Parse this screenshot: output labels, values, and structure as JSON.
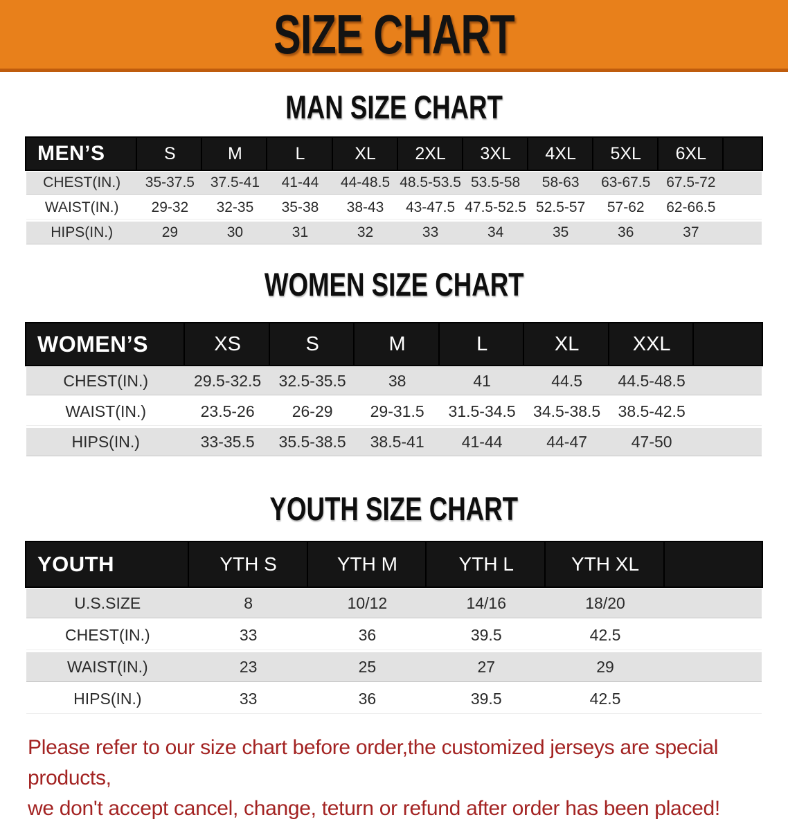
{
  "banner": {
    "title": "SIZE CHART"
  },
  "charts": [
    {
      "title": "MAN SIZE CHART",
      "header_label": "MEN’S",
      "columns": [
        "S",
        "M",
        "L",
        "XL",
        "2XL",
        "3XL",
        "4XL",
        "5XL",
        "6XL"
      ],
      "rows": [
        {
          "label": "CHEST(IN.)",
          "values": [
            "35-37.5",
            "37.5-41",
            "41-44",
            "44-48.5",
            "48.5-53.5",
            "53.5-58",
            "58-63",
            "63-67.5",
            "67.5-72"
          ]
        },
        {
          "label": "WAIST(IN.)",
          "values": [
            "29-32",
            "32-35",
            "35-38",
            "38-43",
            "43-47.5",
            "47.5-52.5",
            "52.5-57",
            "57-62",
            "62-66.5"
          ]
        },
        {
          "label": "HIPS(IN.)",
          "values": [
            "29",
            "30",
            "31",
            "32",
            "33",
            "34",
            "35",
            "36",
            "37"
          ]
        }
      ]
    },
    {
      "title": "WOMEN SIZE CHART",
      "header_label": "WOMEN’S",
      "columns": [
        "XS",
        "S",
        "M",
        "L",
        "XL",
        "XXL"
      ],
      "rows": [
        {
          "label": "CHEST(IN.)",
          "values": [
            "29.5-32.5",
            "32.5-35.5",
            "38",
            "41",
            "44.5",
            "44.5-48.5"
          ]
        },
        {
          "label": "WAIST(IN.)",
          "values": [
            "23.5-26",
            "26-29",
            "29-31.5",
            "31.5-34.5",
            "34.5-38.5",
            "38.5-42.5"
          ]
        },
        {
          "label": "HIPS(IN.)",
          "values": [
            "33-35.5",
            "35.5-38.5",
            "38.5-41",
            "41-44",
            "44-47",
            "47-50"
          ]
        }
      ]
    },
    {
      "title": "YOUTH SIZE CHART",
      "header_label": "YOUTH",
      "columns": [
        "YTH S",
        "YTH M",
        "YTH L",
        "YTH XL"
      ],
      "rows": [
        {
          "label": "U.S.SIZE",
          "values": [
            "8",
            "10/12",
            "14/16",
            "18/20"
          ]
        },
        {
          "label": "CHEST(IN.)",
          "values": [
            "33",
            "36",
            "39.5",
            "42.5"
          ]
        },
        {
          "label": "WAIST(IN.)",
          "values": [
            "23",
            "25",
            "27",
            "29"
          ]
        },
        {
          "label": "HIPS(IN.)",
          "values": [
            "33",
            "36",
            "39.5",
            "42.5"
          ]
        }
      ]
    }
  ],
  "disclaimer": {
    "line1": "Please refer to our size chart before order,the customized jerseys are special products,",
    "line2": "we don't accept cancel, change, teturn or refund after order has been placed!"
  },
  "colors": {
    "banner_bg": "#e8801b",
    "banner_border": "#bf5c0d",
    "header_bar": "#151515",
    "row_alt_gray": "#e2e2e2",
    "disclaimer_text": "#a32322",
    "title_text": "#0e0e0e"
  }
}
